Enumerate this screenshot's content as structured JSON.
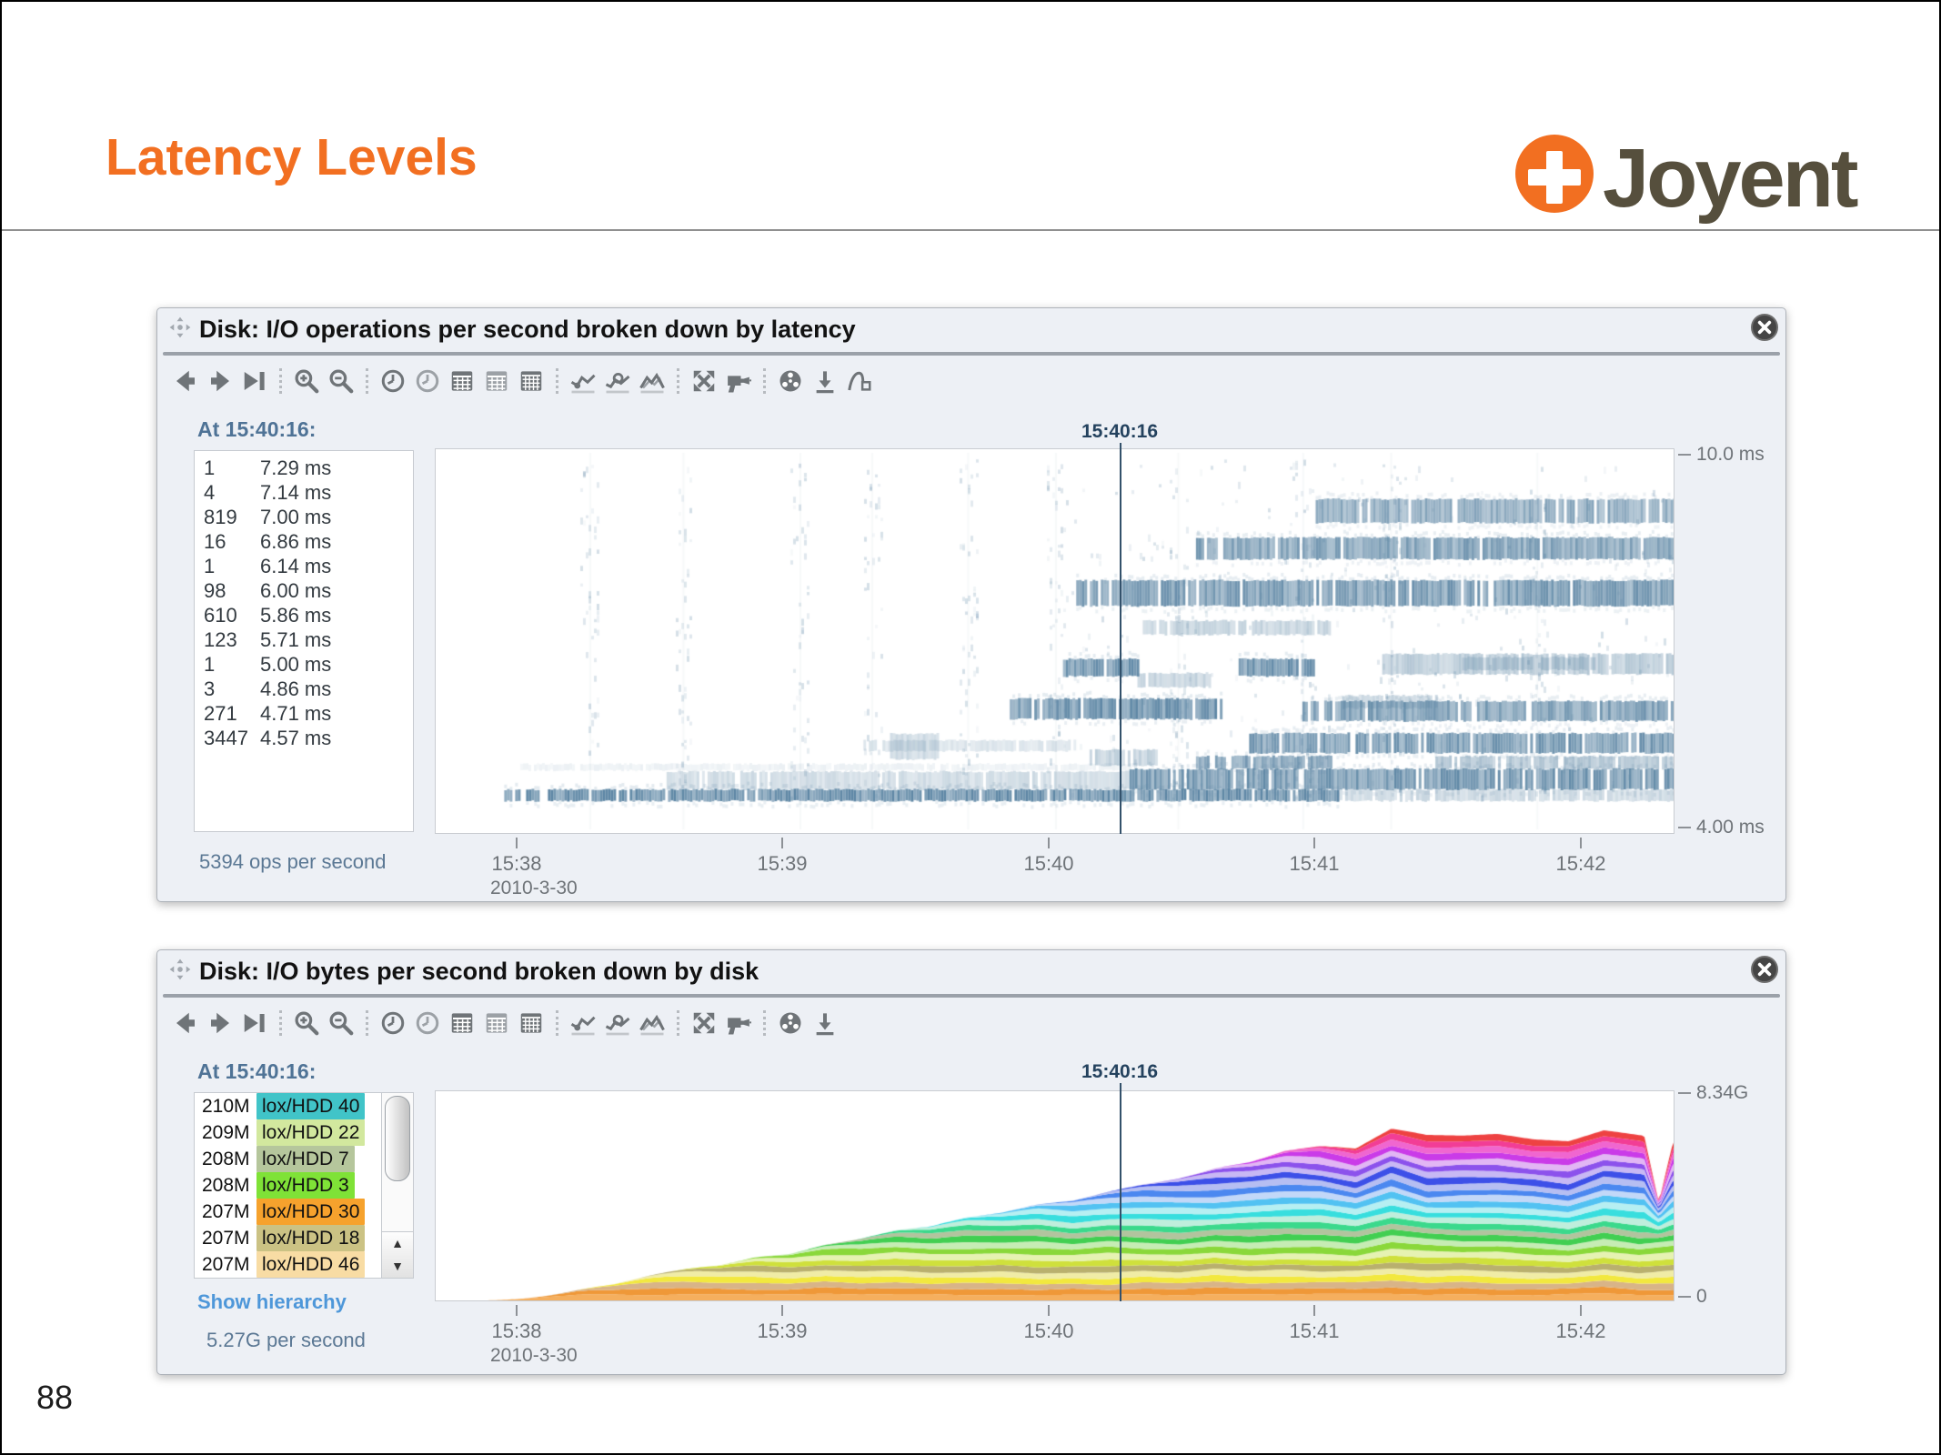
{
  "slide": {
    "title": "Latency Levels",
    "page_number": "88",
    "accent_color": "#F26F21"
  },
  "logo": {
    "text": "Joyent",
    "circle_color": "#F26F21",
    "text_color": "#564F3D"
  },
  "windows": [
    {
      "title": "Disk: I/O operations per second broken down by latency",
      "toolbar": {
        "groups": [
          [
            "step-back",
            "step-forward",
            "step-latest"
          ],
          [
            "zoom-in",
            "zoom-out"
          ],
          [
            "clock-back",
            "clock-forward",
            "calendar-one",
            "calendar-range",
            "calendar-custom"
          ],
          [
            "chart-minimum",
            "chart-examine",
            "chart-overlap"
          ],
          [
            "expand",
            "drilldown"
          ],
          [
            "color-wheel",
            "export",
            "excise-outliers"
          ]
        ]
      }
    },
    {
      "title": "Disk: I/O bytes per second broken down by disk",
      "toolbar": {
        "groups": [
          [
            "step-back",
            "step-forward",
            "step-latest"
          ],
          [
            "zoom-in",
            "zoom-out"
          ],
          [
            "clock-back",
            "clock-forward",
            "calendar-one",
            "calendar-range",
            "calendar-custom"
          ],
          [
            "chart-minimum",
            "chart-examine",
            "chart-overlap"
          ],
          [
            "expand",
            "drilldown"
          ],
          [
            "color-wheel",
            "export"
          ]
        ]
      },
      "links": {
        "show_hierarchy": "Show hierarchy"
      }
    }
  ],
  "chart_data": [
    {
      "type": "heatmap",
      "title": "Disk: I/O operations per second broken down by latency",
      "cursor_heading": "At 15:40:16:",
      "cursor_label": "15:40:16",
      "cursor_time_min": 40.2667,
      "total_at_cursor": "5394 ops per second",
      "values_at_cursor": [
        {
          "count": "1",
          "latency": "7.29 ms"
        },
        {
          "count": "4",
          "latency": "7.14 ms"
        },
        {
          "count": "819",
          "latency": "7.00 ms"
        },
        {
          "count": "16",
          "latency": "6.86 ms"
        },
        {
          "count": "1",
          "latency": "6.14 ms"
        },
        {
          "count": "98",
          "latency": "6.00 ms"
        },
        {
          "count": "610",
          "latency": "5.86 ms"
        },
        {
          "count": "123",
          "latency": "5.71 ms"
        },
        {
          "count": "1",
          "latency": "5.00 ms"
        },
        {
          "count": "3",
          "latency": "4.86 ms"
        },
        {
          "count": "271",
          "latency": "4.71 ms"
        },
        {
          "count": "3447",
          "latency": "4.57 ms"
        }
      ],
      "y_labels": {
        "top": "10.0 ms",
        "bottom": "4.00 ms"
      },
      "y_range_ms": [
        4.0,
        10.0
      ],
      "x_ticks": [
        "15:38",
        "15:39",
        "15:40",
        "15:41",
        "15:42"
      ],
      "date": "2010-3-30",
      "cell_color": "#5E87A5",
      "bands": [
        [
          37.95,
          41.08,
          4.5,
          4.68,
          0.85
        ],
        [
          41.08,
          42.35,
          4.5,
          4.68,
          0.28
        ],
        [
          38.55,
          40.3,
          4.68,
          4.96,
          0.26
        ],
        [
          40.3,
          42.35,
          4.68,
          5.0,
          0.78
        ],
        [
          38.0,
          40.3,
          4.98,
          5.08,
          0.1
        ],
        [
          39.3,
          40.1,
          5.28,
          5.45,
          0.2
        ],
        [
          39.4,
          39.58,
          5.15,
          5.55,
          0.28
        ],
        [
          39.85,
          40.64,
          5.78,
          6.1,
          0.8
        ],
        [
          40.95,
          42.35,
          5.75,
          6.06,
          0.72
        ],
        [
          40.75,
          42.35,
          5.25,
          5.56,
          0.75
        ],
        [
          40.55,
          41.06,
          5.0,
          5.2,
          0.7
        ],
        [
          41.45,
          42.35,
          5.0,
          5.2,
          0.42
        ],
        [
          40.15,
          40.4,
          5.05,
          5.3,
          0.33
        ],
        [
          40.05,
          40.33,
          6.45,
          6.72,
          0.8
        ],
        [
          40.7,
          40.99,
          6.45,
          6.72,
          0.8
        ],
        [
          40.33,
          40.6,
          6.28,
          6.5,
          0.33
        ],
        [
          41.25,
          42.35,
          6.48,
          6.8,
          0.38
        ],
        [
          41.1,
          41.45,
          5.95,
          6.15,
          0.3
        ],
        [
          41.55,
          42.05,
          6.55,
          6.75,
          0.28
        ],
        [
          40.1,
          42.35,
          7.55,
          7.95,
          0.74
        ],
        [
          40.35,
          41.05,
          7.1,
          7.32,
          0.33
        ],
        [
          40.55,
          42.35,
          8.28,
          8.62,
          0.7
        ],
        [
          41.0,
          42.35,
          8.85,
          9.22,
          0.62
        ]
      ],
      "streaks": [
        38.27,
        38.62,
        39.06,
        39.33,
        39.69,
        40.02,
        40.48,
        40.95,
        41.28,
        41.83
      ],
      "speckle_density": {
        "left": 0.05,
        "right": 0.14
      },
      "seed": 7
    },
    {
      "type": "stacked-area",
      "title": "Disk: I/O bytes per second broken down by disk",
      "cursor_heading": "At 15:40:16:",
      "cursor_label": "15:40:16",
      "cursor_time_min": 40.2667,
      "total_at_cursor": "5.27G per second",
      "disks": [
        {
          "value": "210M",
          "label": "lox/HDD 40",
          "color": "#41C4C8"
        },
        {
          "value": "209M",
          "label": "lox/HDD 22",
          "color": "#D2E89E"
        },
        {
          "value": "208M",
          "label": "lox/HDD 7",
          "color": "#B5C69C"
        },
        {
          "value": "208M",
          "label": "lox/HDD 3",
          "color": "#7FE237"
        },
        {
          "value": "207M",
          "label": "lox/HDD 30",
          "color": "#F6A22D"
        },
        {
          "value": "207M",
          "label": "lox/HDD 18",
          "color": "#CBC284"
        },
        {
          "value": "207M",
          "label": "lox/HDD 46",
          "color": "#F8DCA4"
        }
      ],
      "y_labels": {
        "top": "8.34G",
        "bottom": "0"
      },
      "y_max_g": 8.34,
      "x_ticks": [
        "15:38",
        "15:39",
        "15:40",
        "15:41",
        "15:42"
      ],
      "date": "2010-3-30",
      "layer_colors": [
        "#F5AF5E",
        "#EF9838",
        "#D8B488",
        "#F2E83E",
        "#F0ECA6",
        "#B9B06E",
        "#CFE03C",
        "#E6F2B2",
        "#8AD83A",
        "#C6ECB4",
        "#42CF52",
        "#B2C49E",
        "#3BD98C",
        "#BFEEDC",
        "#38DEDE",
        "#B6EFF2",
        "#52C2F2",
        "#C2D8F8",
        "#4B88F0",
        "#B6BEF2",
        "#3D50E8",
        "#C8B8F4",
        "#8C52EC",
        "#E2B6F4",
        "#CA3BE8",
        "#F066D0",
        "#F23D96",
        "#EE4242"
      ],
      "layer_cap_g": 0.235,
      "layer_start_min": 37.85,
      "layer_stagger_min": 0.115,
      "ramp_min": 0.5,
      "dip": {
        "center_min": 42.29,
        "half_width_min": 0.055
      },
      "seed": 11
    }
  ]
}
